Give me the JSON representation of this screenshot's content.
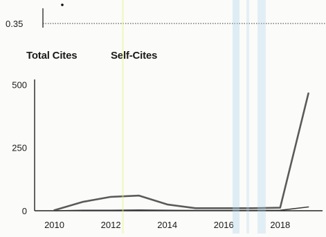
{
  "top_plot": {
    "reference_label": "0.35"
  },
  "legend": {
    "total": "Total Cites",
    "self": "Self-Cites"
  },
  "chart_data": {
    "type": "line",
    "title": "",
    "xlabel": "",
    "ylabel": "",
    "x_ticks": [
      2010,
      2012,
      2014,
      2016,
      2018
    ],
    "y_ticks": [
      0,
      250,
      500
    ],
    "xlim": [
      2009.3,
      2019.5
    ],
    "ylim": [
      0,
      520
    ],
    "x": [
      2010,
      2011,
      2012,
      2013,
      2014,
      2015,
      2016,
      2017,
      2018,
      2019
    ],
    "series": [
      {
        "name": "Total Cites",
        "values": [
          2,
          35,
          55,
          60,
          25,
          10,
          10,
          10,
          12,
          465
        ]
      },
      {
        "name": "Self-Cites",
        "values": [
          0,
          2,
          2,
          3,
          2,
          1,
          1,
          1,
          2,
          15
        ]
      }
    ],
    "colors": {
      "total": "#5a5a5a",
      "self": "#3a3a3a",
      "axis": "#222222"
    },
    "grid": false,
    "legend_position": "top-left"
  }
}
